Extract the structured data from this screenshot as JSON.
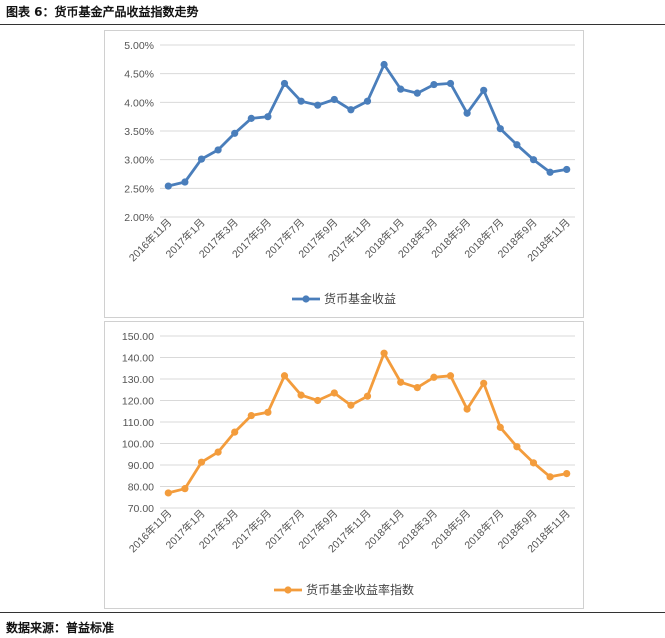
{
  "figure_title": "图表 6：货币基金产品收益指数走势",
  "source_note": "数据来源：普益标准",
  "chart_data": [
    {
      "type": "line",
      "title": "",
      "xlabel": "",
      "ylabel": "",
      "color": "#4a7ebb",
      "x": [
        "2016年11月",
        "2016年12月",
        "2017年1月",
        "2017年2月",
        "2017年3月",
        "2017年4月",
        "2017年5月",
        "2017年6月",
        "2017年7月",
        "2017年8月",
        "2017年9月",
        "2017年10月",
        "2017年11月",
        "2017年12月",
        "2018年1月",
        "2018年2月",
        "2018年3月",
        "2018年4月",
        "2018年5月",
        "2018年6月",
        "2018年7月",
        "2018年8月",
        "2018年9月",
        "2018年10月",
        "2018年11月"
      ],
      "x_tick_labels": [
        "2016年11月",
        "2017年1月",
        "2017年3月",
        "2017年5月",
        "2017年7月",
        "2017年9月",
        "2017年11月",
        "2018年1月",
        "2018年3月",
        "2018年5月",
        "2018年7月",
        "2018年9月",
        "2018年11月"
      ],
      "ylim": [
        0.02,
        0.05
      ],
      "y_ticks": [
        "2.00%",
        "2.50%",
        "3.00%",
        "3.50%",
        "4.00%",
        "4.50%",
        "5.00%"
      ],
      "series": [
        {
          "name": "货币基金收益",
          "values": [
            0.0254,
            0.0261,
            0.0301,
            0.0317,
            0.0346,
            0.0372,
            0.0375,
            0.0433,
            0.0402,
            0.0395,
            0.0405,
            0.0387,
            0.0402,
            0.0466,
            0.0423,
            0.0416,
            0.0431,
            0.0433,
            0.0381,
            0.0421,
            0.0354,
            0.0326,
            0.03,
            0.0278,
            0.0283
          ]
        }
      ],
      "grid": true,
      "legend": "bottom"
    },
    {
      "type": "line",
      "title": "",
      "xlabel": "",
      "ylabel": "",
      "color": "#f39c3c",
      "x": [
        "2016年11月",
        "2016年12月",
        "2017年1月",
        "2017年2月",
        "2017年3月",
        "2017年4月",
        "2017年5月",
        "2017年6月",
        "2017年7月",
        "2017年8月",
        "2017年9月",
        "2017年10月",
        "2017年11月",
        "2017年12月",
        "2018年1月",
        "2018年2月",
        "2018年3月",
        "2018年4月",
        "2018年5月",
        "2018年6月",
        "2018年7月",
        "2018年8月",
        "2018年9月",
        "2018年10月",
        "2018年11月"
      ],
      "x_tick_labels": [
        "2016年11月",
        "2017年1月",
        "2017年3月",
        "2017年5月",
        "2017年7月",
        "2017年9月",
        "2017年11月",
        "2018年1月",
        "2018年3月",
        "2018年5月",
        "2018年7月",
        "2018年9月",
        "2018年11月"
      ],
      "ylim": [
        70,
        150
      ],
      "y_ticks": [
        "70.00",
        "80.00",
        "90.00",
        "100.00",
        "110.00",
        "120.00",
        "130.00",
        "140.00",
        "150.00"
      ],
      "series": [
        {
          "name": "货币基金收益率指数",
          "values": [
            77.0,
            79.0,
            91.3,
            96.0,
            105.3,
            113.0,
            114.5,
            131.5,
            122.5,
            120.0,
            123.5,
            117.8,
            122.0,
            142.0,
            128.5,
            126.0,
            130.8,
            131.5,
            116.0,
            128.0,
            107.5,
            98.5,
            91.0,
            84.5,
            86.0
          ]
        }
      ],
      "grid": true,
      "legend": "bottom"
    }
  ]
}
